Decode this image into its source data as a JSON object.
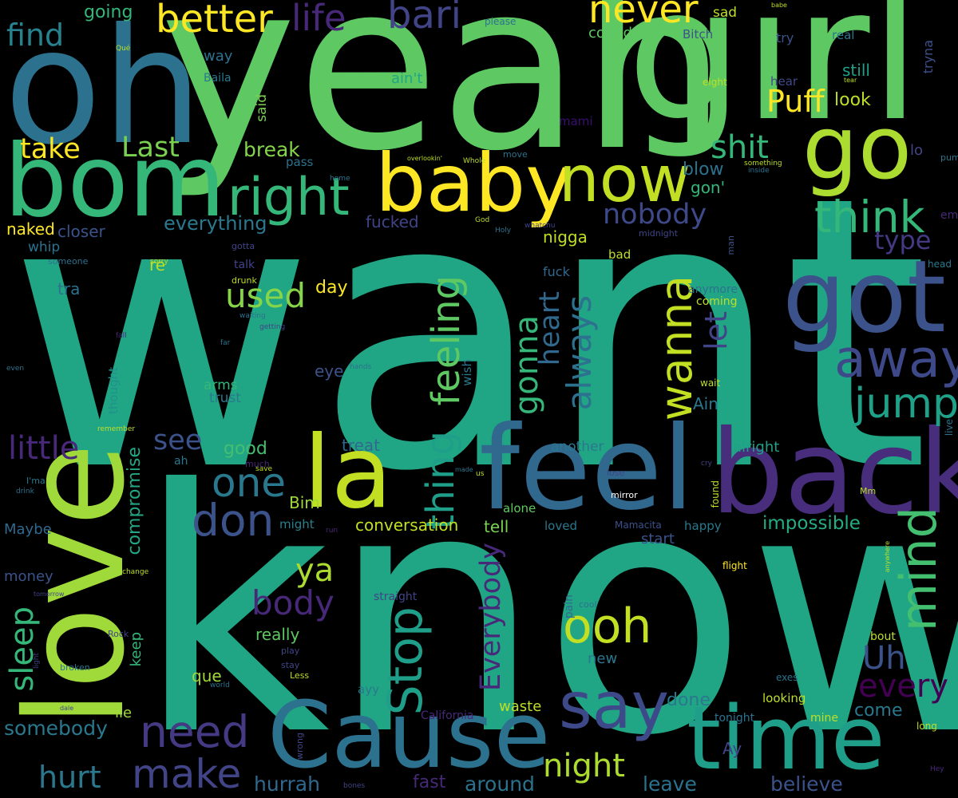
{
  "words": [
    {
      "text": "want",
      "color": "#21a685"
    },
    {
      "text": "know",
      "color": "#21a685"
    },
    {
      "text": "yeah",
      "color": "#5ec962"
    },
    {
      "text": "girl",
      "color": "#5ec962"
    },
    {
      "text": "oh",
      "color": "#2c728e"
    },
    {
      "text": "love",
      "color": "#9fda3a"
    },
    {
      "text": "bom",
      "color": "#35b779"
    },
    {
      "text": "feel",
      "color": "#31688e"
    },
    {
      "text": "back",
      "color": "#472d7b"
    },
    {
      "text": "Cause",
      "color": "#2c728e"
    },
    {
      "text": "time",
      "color": "#1f9e89"
    },
    {
      "text": "got",
      "color": "#3b528b"
    },
    {
      "text": "baby",
      "color": "#fde725"
    },
    {
      "text": "la",
      "color": "#c2df23"
    },
    {
      "text": "go",
      "color": "#addc30"
    },
    {
      "text": "now",
      "color": "#c2df23"
    },
    {
      "text": "right",
      "color": "#35b779"
    },
    {
      "text": "say",
      "color": "#3e4989"
    },
    {
      "text": "away",
      "color": "#3e4989"
    },
    {
      "text": "think",
      "color": "#35b779"
    },
    {
      "text": "mind",
      "color": "#44bf70"
    },
    {
      "text": "need",
      "color": "#443983"
    },
    {
      "text": "make",
      "color": "#414487"
    },
    {
      "text": "jump",
      "color": "#1fa088"
    },
    {
      "text": "thing",
      "color": "#1f9e89"
    },
    {
      "text": "feeling",
      "color": "#5ec962"
    },
    {
      "text": "Stop",
      "color": "#1f9e89"
    },
    {
      "text": "ooh",
      "color": "#c2df23"
    },
    {
      "text": "wanna",
      "color": "#c2df23"
    },
    {
      "text": "one",
      "color": "#2a788e"
    },
    {
      "text": "don",
      "color": "#3b528b"
    },
    {
      "text": "better",
      "color": "#fde725"
    },
    {
      "text": "never",
      "color": "#fde725"
    },
    {
      "text": "bari",
      "color": "#414487"
    },
    {
      "text": "life",
      "color": "#482878"
    },
    {
      "text": "Puff",
      "color": "#fde725"
    },
    {
      "text": "find",
      "color": "#26828e"
    },
    {
      "text": "take",
      "color": "#fde725"
    },
    {
      "text": "Last",
      "color": "#7ad151"
    },
    {
      "text": "shit",
      "color": "#35b779"
    },
    {
      "text": "nobody",
      "color": "#3e4989"
    },
    {
      "text": "type",
      "color": "#443983"
    },
    {
      "text": "used",
      "color": "#86d549"
    },
    {
      "text": "little",
      "color": "#482878"
    },
    {
      "text": "see",
      "color": "#3b528b"
    },
    {
      "text": "hurt",
      "color": "#2a788e"
    },
    {
      "text": "night",
      "color": "#addc30"
    },
    {
      "text": "body",
      "color": "#482878"
    },
    {
      "text": "ya",
      "color": "#addc30"
    },
    {
      "text": "Uh",
      "color": "#3b528b"
    },
    {
      "text": "every",
      "color": "#440154"
    },
    {
      "text": "gonna",
      "color": "#35b779"
    },
    {
      "text": "heart",
      "color": "#31688e"
    },
    {
      "text": "always",
      "color": "#2c728e"
    },
    {
      "text": "let",
      "color": "#414487"
    },
    {
      "text": "Everybody",
      "color": "#482878"
    },
    {
      "text": "sleep",
      "color": "#35b779"
    },
    {
      "text": "somebody",
      "color": "#2a788e"
    },
    {
      "text": "believe",
      "color": "#3b528b"
    },
    {
      "text": "leave",
      "color": "#2c728e"
    },
    {
      "text": "hurrah",
      "color": "#31688e"
    },
    {
      "text": "around",
      "color": "#2c728e"
    },
    {
      "text": "fast",
      "color": "#482878"
    },
    {
      "text": "conversation",
      "color": "#c2df23"
    },
    {
      "text": "impossible",
      "color": "#25ac82"
    },
    {
      "text": "compromise",
      "color": "#22a884"
    },
    {
      "text": "everything",
      "color": "#2a788e"
    },
    {
      "text": "break",
      "color": "#86d549"
    },
    {
      "text": "blow",
      "color": "#2c728e"
    },
    {
      "text": "gon'",
      "color": "#35b779"
    },
    {
      "text": "nigga",
      "color": "#c2df23"
    },
    {
      "text": "fucked",
      "color": "#414487"
    },
    {
      "text": "closer",
      "color": "#3b528b"
    },
    {
      "text": "naked",
      "color": "#fde725"
    },
    {
      "text": "whip",
      "color": "#2c728e"
    },
    {
      "text": "re",
      "color": "#bddf26"
    },
    {
      "text": "tra",
      "color": "#2c728e"
    },
    {
      "text": "day",
      "color": "#fde725"
    },
    {
      "text": "going",
      "color": "#35b779"
    },
    {
      "text": "confident",
      "color": "#5ec962"
    },
    {
      "text": "sad",
      "color": "#bddf26"
    },
    {
      "text": "Bitch",
      "color": "#3b528b"
    },
    {
      "text": "way",
      "color": "#2c728e"
    },
    {
      "text": "ain't",
      "color": "#21a685"
    },
    {
      "text": "still",
      "color": "#1fa088"
    },
    {
      "text": "look",
      "color": "#bddf26"
    },
    {
      "text": "mami",
      "color": "#3b0f70"
    },
    {
      "text": "said",
      "color": "#7ad151"
    },
    {
      "text": "pass",
      "color": "#2c728e"
    },
    {
      "text": "Ain",
      "color": "#2a788e"
    },
    {
      "text": "good",
      "color": "#44bf70"
    },
    {
      "text": "treat",
      "color": "#31688e"
    },
    {
      "text": "Bim",
      "color": "#9fda3a"
    },
    {
      "text": "arms",
      "color": "#35b779"
    },
    {
      "text": "trust",
      "color": "#2a788e"
    },
    {
      "text": "eye",
      "color": "#3b528b"
    },
    {
      "text": "wish",
      "color": "#2a788e"
    },
    {
      "text": "thought",
      "color": "#21918c"
    },
    {
      "text": "Maybe",
      "color": "#31688e"
    },
    {
      "text": "money",
      "color": "#3b528b"
    },
    {
      "text": "keep",
      "color": "#35b779"
    },
    {
      "text": "que",
      "color": "#9fda3a"
    },
    {
      "text": "really",
      "color": "#5ec962"
    },
    {
      "text": "might",
      "color": "#26828e"
    },
    {
      "text": "tell",
      "color": "#7ad151"
    },
    {
      "text": "loved",
      "color": "#2a788e"
    },
    {
      "text": "happy",
      "color": "#2a788e"
    },
    {
      "text": "start",
      "color": "#3b528b"
    },
    {
      "text": "alone",
      "color": "#5ec962"
    },
    {
      "text": "alright",
      "color": "#1fa088"
    },
    {
      "text": "another",
      "color": "#2a788e"
    },
    {
      "text": "done",
      "color": "#2a788e"
    },
    {
      "text": "waste",
      "color": "#bddf26"
    },
    {
      "text": "come",
      "color": "#2a788e"
    },
    {
      "text": "lie",
      "color": "#9fda3a"
    },
    {
      "text": "ayy",
      "color": "#2a788e"
    },
    {
      "text": "Ay",
      "color": "#414487"
    },
    {
      "text": "fuck",
      "color": "#31688e"
    },
    {
      "text": "anymore",
      "color": "#2c728e"
    },
    {
      "text": "coming",
      "color": "#bddf26"
    },
    {
      "text": "wait",
      "color": "#bddf26"
    },
    {
      "text": "found",
      "color": "#bddf26"
    },
    {
      "text": "mirror",
      "color": "#ffffff"
    },
    {
      "text": "Mamacita",
      "color": "#3b528b"
    },
    {
      "text": "flight",
      "color": "#fde725"
    },
    {
      "text": "pain",
      "color": "#31688e"
    },
    {
      "text": "cool",
      "color": "#2c728e"
    },
    {
      "text": "straight",
      "color": "#414487"
    },
    {
      "text": "new",
      "color": "#2a788e"
    },
    {
      "text": "bout",
      "color": "#bddf26"
    },
    {
      "text": "exes",
      "color": "#2c728e"
    },
    {
      "text": "looking",
      "color": "#bddf26"
    },
    {
      "text": "tonight",
      "color": "#2c728e"
    },
    {
      "text": "mine",
      "color": "#bddf26"
    },
    {
      "text": "long",
      "color": "#bddf26"
    },
    {
      "text": "Hey",
      "color": "#482878"
    },
    {
      "text": "lo",
      "color": "#414487"
    },
    {
      "text": "pum",
      "color": "#2a788e"
    },
    {
      "text": "em",
      "color": "#482878"
    },
    {
      "text": "head",
      "color": "#2a788e"
    },
    {
      "text": "live",
      "color": "#2c728e"
    },
    {
      "text": "Mm",
      "color": "#bddf26"
    },
    {
      "text": "anywhere",
      "color": "#bddf26"
    },
    {
      "text": "hear",
      "color": "#3e4989"
    },
    {
      "text": "eight",
      "color": "#bddf26"
    },
    {
      "text": "tear",
      "color": "#bddf26"
    },
    {
      "text": "real",
      "color": "#2a788e"
    },
    {
      "text": "try",
      "color": "#3b528b"
    },
    {
      "text": "tryna",
      "color": "#3b528b"
    },
    {
      "text": "please",
      "color": "#2c728e"
    },
    {
      "text": "babe",
      "color": "#bddf26"
    },
    {
      "text": "Qué",
      "color": "#bddf26"
    },
    {
      "text": "Baila",
      "color": "#2a788e"
    },
    {
      "text": "overlookin'",
      "color": "#bddf26"
    },
    {
      "text": "Whole",
      "color": "#bddf26"
    },
    {
      "text": "move",
      "color": "#2c728e"
    },
    {
      "text": "something",
      "color": "#bddf26"
    },
    {
      "text": "inside",
      "color": "#2c728e"
    },
    {
      "text": "home",
      "color": "#2c728e"
    },
    {
      "text": "God",
      "color": "#bddf26"
    },
    {
      "text": "Holy",
      "color": "#2c728e"
    },
    {
      "text": "whatchu",
      "color": "#414487"
    },
    {
      "text": "midnight",
      "color": "#414487"
    },
    {
      "text": "man",
      "color": "#3b528b"
    },
    {
      "text": "bad",
      "color": "#bddf26"
    },
    {
      "text": "gotta",
      "color": "#414487"
    },
    {
      "text": "someone",
      "color": "#2c728e"
    },
    {
      "text": "sorry",
      "color": "#bddf26"
    },
    {
      "text": "talk",
      "color": "#414487"
    },
    {
      "text": "drunk",
      "color": "#bddf26"
    },
    {
      "text": "waiting",
      "color": "#2c728e"
    },
    {
      "text": "getting",
      "color": "#414487"
    },
    {
      "text": "fall",
      "color": "#482878"
    },
    {
      "text": "far",
      "color": "#2c728e"
    },
    {
      "text": "even",
      "color": "#2c728e"
    },
    {
      "text": "hands",
      "color": "#2c728e"
    },
    {
      "text": "remember",
      "color": "#bddf26"
    },
    {
      "text": "ah",
      "color": "#2a788e"
    },
    {
      "text": "much",
      "color": "#482878"
    },
    {
      "text": "save",
      "color": "#bddf26"
    },
    {
      "text": "I'ma",
      "color": "#2a788e"
    },
    {
      "text": "drink",
      "color": "#2c728e"
    },
    {
      "text": "made",
      "color": "#2c728e"
    },
    {
      "text": "us",
      "color": "#bddf26"
    },
    {
      "text": "lose",
      "color": "#414487"
    },
    {
      "text": "cry",
      "color": "#414487"
    },
    {
      "text": "run",
      "color": "#482878"
    },
    {
      "text": "change",
      "color": "#bddf26"
    },
    {
      "text": "tomorrow",
      "color": "#414487"
    },
    {
      "text": "Rock",
      "color": "#414487"
    },
    {
      "text": "play",
      "color": "#414487"
    },
    {
      "text": "stay",
      "color": "#414487"
    },
    {
      "text": "broken",
      "color": "#2c728e"
    },
    {
      "text": "light",
      "color": "#414487"
    },
    {
      "text": "world",
      "color": "#2c728e"
    },
    {
      "text": "Less",
      "color": "#bddf26"
    },
    {
      "text": "dale",
      "color": "#414487"
    },
    {
      "text": "California",
      "color": "#482878"
    },
    {
      "text": "wrong",
      "color": "#414487"
    },
    {
      "text": "bones",
      "color": "#414487"
    }
  ]
}
